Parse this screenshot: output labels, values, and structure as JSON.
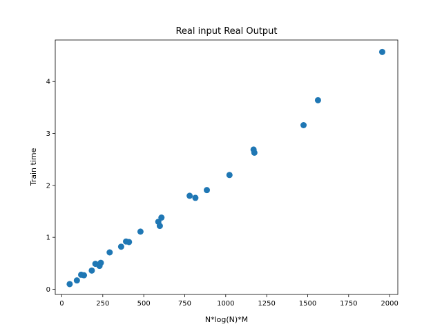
{
  "chart_data": {
    "type": "scatter",
    "title": "Real input Real Output",
    "xlabel": "N*log(N)*M",
    "ylabel": "Train time",
    "xlim": [
      -40,
      2050
    ],
    "ylim": [
      -0.1,
      4.8
    ],
    "xticks": [
      0,
      250,
      500,
      750,
      1000,
      1250,
      1500,
      1750,
      2000
    ],
    "yticks": [
      0,
      1,
      2,
      3,
      4
    ],
    "grid": false,
    "marker_color": "#1f77b4",
    "points": [
      {
        "x": 48,
        "y": 0.1
      },
      {
        "x": 92,
        "y": 0.17
      },
      {
        "x": 118,
        "y": 0.28
      },
      {
        "x": 135,
        "y": 0.27
      },
      {
        "x": 183,
        "y": 0.36
      },
      {
        "x": 205,
        "y": 0.49
      },
      {
        "x": 230,
        "y": 0.45
      },
      {
        "x": 238,
        "y": 0.51
      },
      {
        "x": 292,
        "y": 0.71
      },
      {
        "x": 362,
        "y": 0.82
      },
      {
        "x": 392,
        "y": 0.92
      },
      {
        "x": 410,
        "y": 0.91
      },
      {
        "x": 480,
        "y": 1.11
      },
      {
        "x": 589,
        "y": 1.3
      },
      {
        "x": 598,
        "y": 1.22
      },
      {
        "x": 608,
        "y": 1.38
      },
      {
        "x": 780,
        "y": 1.8
      },
      {
        "x": 815,
        "y": 1.76
      },
      {
        "x": 885,
        "y": 1.91
      },
      {
        "x": 1023,
        "y": 2.2
      },
      {
        "x": 1170,
        "y": 2.69
      },
      {
        "x": 1175,
        "y": 2.63
      },
      {
        "x": 1475,
        "y": 3.16
      },
      {
        "x": 1563,
        "y": 3.64
      },
      {
        "x": 1955,
        "y": 4.57
      }
    ]
  }
}
